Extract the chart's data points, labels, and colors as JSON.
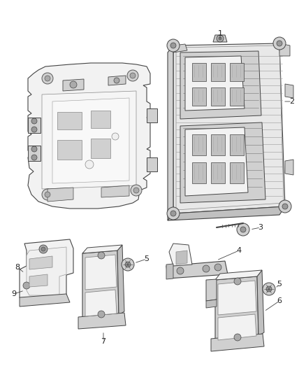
{
  "background_color": "#ffffff",
  "fig_width": 4.38,
  "fig_height": 5.33,
  "dpi": 100,
  "line_color": "#444444",
  "lw_main": 0.8,
  "lw_thin": 0.4,
  "part_fc": "#e8e8e8",
  "part_fc2": "#d0d0d0",
  "part_fc3": "#f2f2f2",
  "shade_fc": "#c0c0c0"
}
